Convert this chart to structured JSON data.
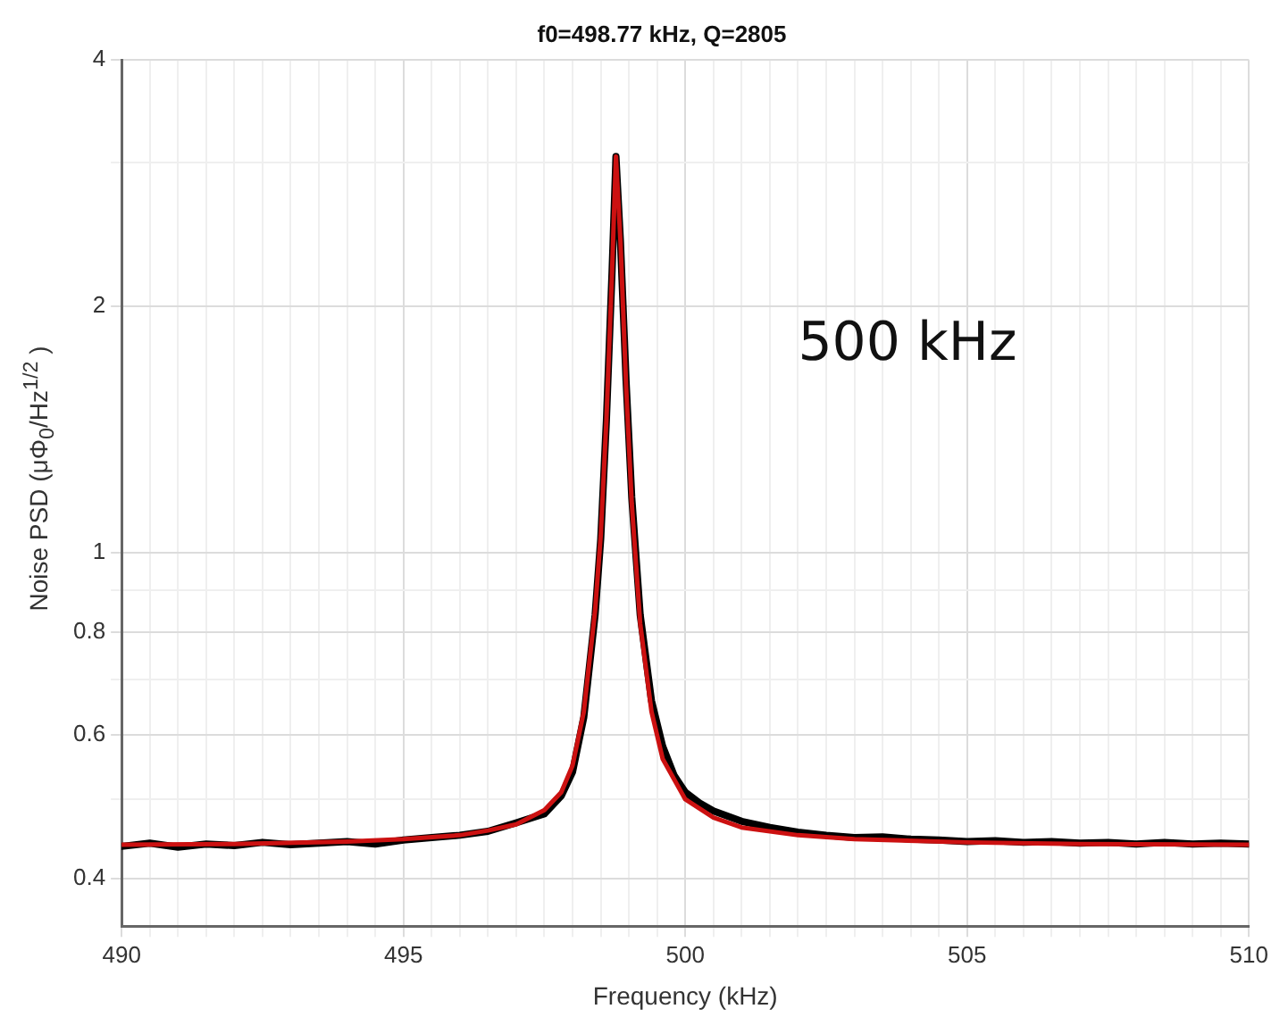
{
  "chart_data": {
    "type": "line",
    "title": "f0=498.77 kHz, Q=2805",
    "xlabel": "Frequency (kHz)",
    "ylabel": "Noise PSD (μΦ$_{0}$/Hz$^{1/2}$ )",
    "annotations": [
      "500 kHz"
    ],
    "log": "y",
    "grid": true,
    "legend": false,
    "marker": "none",
    "line_style": "solid",
    "xlim": [
      490,
      510
    ],
    "ylim": [
      0.35,
      4
    ],
    "xticks": [
      490,
      {
        "value": 490.5,
        "label": null
      },
      {
        "value": 491,
        "label": null
      },
      {
        "value": 491.5,
        "label": null
      },
      {
        "value": 492,
        "label": null
      },
      {
        "value": 492.5,
        "label": null
      },
      {
        "value": 493,
        "label": null
      },
      {
        "value": 493.5,
        "label": null
      },
      {
        "value": 494,
        "label": null
      },
      {
        "value": 494.5,
        "label": null
      },
      495,
      {
        "value": 495.5,
        "label": null
      },
      {
        "value": 496,
        "label": null
      },
      {
        "value": 496.5,
        "label": null
      },
      {
        "value": 497,
        "label": null
      },
      {
        "value": 497.5,
        "label": null
      },
      {
        "value": 498,
        "label": null
      },
      {
        "value": 498.5,
        "label": null
      },
      {
        "value": 499,
        "label": null
      },
      {
        "value": 499.5,
        "label": null
      },
      500,
      {
        "value": 500.5,
        "label": null
      },
      {
        "value": 501,
        "label": null
      },
      {
        "value": 501.5,
        "label": null
      },
      {
        "value": 502,
        "label": null
      },
      {
        "value": 502.5,
        "label": null
      },
      {
        "value": 503,
        "label": null
      },
      {
        "value": 503.5,
        "label": null
      },
      {
        "value": 504,
        "label": null
      },
      {
        "value": 504.5,
        "label": null
      },
      505,
      {
        "value": 505.5,
        "label": null
      },
      {
        "value": 506,
        "label": null
      },
      {
        "value": 506.5,
        "label": null
      },
      {
        "value": 507,
        "label": null
      },
      {
        "value": 507.5,
        "label": null
      },
      {
        "value": 508,
        "label": null
      },
      {
        "value": 508.5,
        "label": null
      },
      {
        "value": 509,
        "label": null
      },
      {
        "value": 509.5,
        "label": null
      },
      510
    ],
    "yticks": [
      0.4,
      {
        "value": 0.5,
        "label": null
      },
      0.6,
      {
        "value": 0.7,
        "label": null
      },
      0.8,
      {
        "value": 0.9,
        "label": null
      },
      1,
      2,
      {
        "value": 3,
        "label": null
      },
      4
    ],
    "series": [
      {
        "color": "#000000",
        "x": [
          490,
          490.5,
          491,
          491.5,
          492,
          492.5,
          493,
          493.5,
          494,
          494.5,
          495,
          495.5,
          496,
          496.5,
          497,
          497.5,
          497.8,
          498,
          498.2,
          498.4,
          498.5,
          498.6,
          498.7,
          498.77,
          498.85,
          498.95,
          499.05,
          499.2,
          499.4,
          499.6,
          499.8,
          500,
          500.25,
          500.5,
          501,
          501.5,
          502,
          502.5,
          503,
          503.5,
          504,
          504.5,
          505,
          505.5,
          506,
          506.5,
          507,
          507.5,
          508,
          508.5,
          509,
          509.5,
          510
        ],
        "values": [
          0.438,
          0.442,
          0.437,
          0.441,
          0.439,
          0.443,
          0.44,
          0.442,
          0.444,
          0.441,
          0.446,
          0.449,
          0.452,
          0.457,
          0.468,
          0.48,
          0.505,
          0.54,
          0.63,
          0.84,
          1.04,
          1.45,
          2.2,
          3.05,
          2.4,
          1.62,
          1.17,
          0.84,
          0.66,
          0.58,
          0.535,
          0.51,
          0.495,
          0.484,
          0.47,
          0.462,
          0.456,
          0.452,
          0.449,
          0.45,
          0.447,
          0.446,
          0.444,
          0.445,
          0.443,
          0.444,
          0.442,
          0.443,
          0.441,
          0.443,
          0.441,
          0.442,
          0.441
        ]
      },
      {
        "color": "#cc1111",
        "x": [
          490,
          492,
          494,
          495,
          496,
          496.5,
          497,
          497.5,
          497.8,
          498,
          498.2,
          498.4,
          498.5,
          498.6,
          498.7,
          498.77,
          498.85,
          498.95,
          499.05,
          499.2,
          499.4,
          499.6,
          500,
          500.5,
          501,
          502,
          503,
          505,
          507,
          510
        ],
        "values": [
          0.44,
          0.441,
          0.444,
          0.447,
          0.452,
          0.458,
          0.466,
          0.485,
          0.51,
          0.55,
          0.64,
          0.85,
          1.05,
          1.45,
          2.2,
          3.05,
          2.4,
          1.6,
          1.15,
          0.82,
          0.64,
          0.56,
          0.5,
          0.475,
          0.462,
          0.452,
          0.447,
          0.443,
          0.441,
          0.44
        ]
      }
    ]
  }
}
